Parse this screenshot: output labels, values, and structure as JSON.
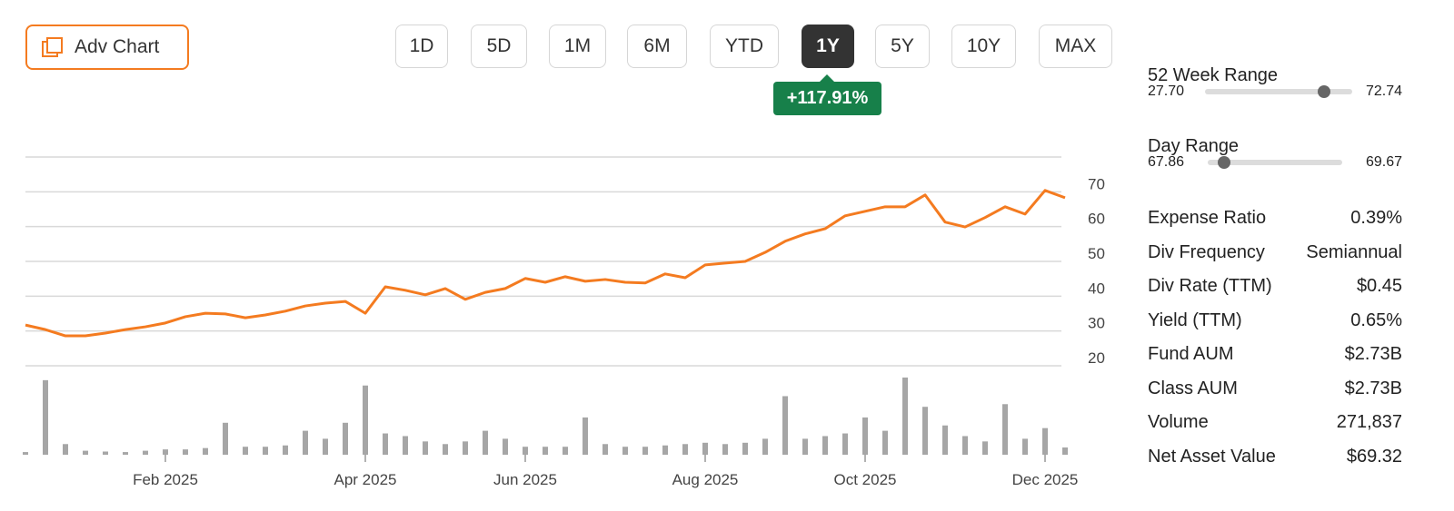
{
  "toolbar": {
    "adv_chart": "Adv Chart",
    "ranges": [
      "1D",
      "5D",
      "1M",
      "6M",
      "YTD",
      "1Y",
      "5Y",
      "10Y",
      "MAX"
    ],
    "selected": "1Y",
    "change": "+117.91%"
  },
  "chart_data": {
    "type": "line",
    "categories": [
      null,
      null,
      null,
      null,
      null,
      null,
      null,
      "Feb 2025",
      null,
      null,
      null,
      null,
      null,
      null,
      null,
      null,
      null,
      "Apr 2025",
      null,
      null,
      null,
      null,
      null,
      null,
      null,
      "Jun 2025",
      null,
      null,
      null,
      null,
      null,
      null,
      null,
      null,
      "Aug 2025",
      null,
      null,
      null,
      null,
      null,
      null,
      null,
      "Oct 2025",
      null,
      null,
      null,
      null,
      null,
      null,
      null,
      null,
      "Dec 2025",
      null
    ],
    "series": [
      {
        "color": "#f47b20",
        "values": [
          31.7,
          30.4,
          28.6,
          28.6,
          29.4,
          30.4,
          31.2,
          32.3,
          34.1,
          35.1,
          34.9,
          33.8,
          34.6,
          35.7,
          37.2,
          38.0,
          38.5,
          35.1,
          42.7,
          41.7,
          40.4,
          42.2,
          39.1,
          41.1,
          42.2,
          45.1,
          44.0,
          45.6,
          44.3,
          44.8,
          44.0,
          43.8,
          46.4,
          45.3,
          49.0,
          49.5,
          50.0,
          52.6,
          55.8,
          57.9,
          59.4,
          63.1,
          64.4,
          65.7,
          65.7,
          69.1,
          61.3,
          59.9,
          62.6,
          65.7,
          63.6,
          70.4,
          68.3
        ]
      },
      {
        "type": "bar",
        "axis": "y2",
        "color": "#a6a6a6",
        "values": [
          100000,
          2800000,
          400000,
          150000,
          120000,
          100000,
          150000,
          200000,
          200000,
          250000,
          1200000,
          300000,
          300000,
          350000,
          900000,
          600000,
          1200000,
          2600000,
          800000,
          700000,
          500000,
          400000,
          500000,
          900000,
          600000,
          300000,
          300000,
          300000,
          1400000,
          400000,
          300000,
          300000,
          350000,
          400000,
          450000,
          400000,
          450000,
          600000,
          2200000,
          600000,
          700000,
          800000,
          1400000,
          900000,
          2900000,
          1800000,
          1100000,
          700000,
          500000,
          1900000,
          600000,
          1000000,
          271837
        ]
      }
    ],
    "ylim": [
      20,
      80
    ],
    "yticks": [
      20,
      30,
      40,
      50,
      60,
      70
    ],
    "y2lim": [
      0,
      3000000
    ],
    "grid": true
  },
  "stats": {
    "week_range": {
      "label": "52 Week Range",
      "low": "27.70",
      "high": "72.74"
    },
    "day_range": {
      "label": "Day Range",
      "low": "67.86",
      "high": "69.67"
    },
    "rows": [
      [
        "Expense Ratio",
        "0.39%"
      ],
      [
        "Div Frequency",
        "Semiannual"
      ],
      [
        "Div Rate (TTM)",
        "$0.45"
      ],
      [
        "Yield (TTM)",
        "0.65%"
      ],
      [
        "Fund AUM",
        "$2.73B"
      ],
      [
        "Class AUM",
        "$2.73B"
      ],
      [
        "Volume",
        "271,837"
      ],
      [
        "Net Asset Value",
        "$69.32"
      ]
    ]
  }
}
